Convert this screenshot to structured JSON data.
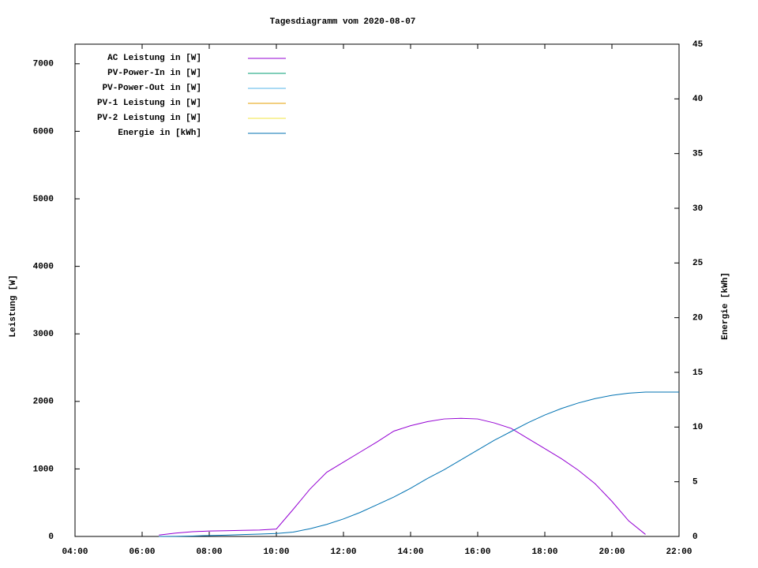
{
  "chart_data": {
    "type": "line",
    "title": "Tagesdiagramm vom 2020-08-07",
    "y_label": "Leistung [W]",
    "y2_label": "Energie [kWh]",
    "x": [
      6.5,
      7,
      7.5,
      8,
      8.5,
      9,
      9.5,
      10,
      10.5,
      11,
      11.5,
      12,
      12.5,
      13,
      13.5,
      14,
      14.5,
      15,
      15.5,
      16,
      16.5,
      17,
      17.5,
      18,
      18.5,
      19,
      19.5,
      20,
      20.5,
      21,
      21.5,
      22
    ],
    "xlim": [
      4,
      22
    ],
    "xticks": [
      {
        "value": 4,
        "label": "04:00"
      },
      {
        "value": 6,
        "label": "06:00"
      },
      {
        "value": 8,
        "label": "08:00"
      },
      {
        "value": 10,
        "label": "10:00"
      },
      {
        "value": 12,
        "label": "12:00"
      },
      {
        "value": 14,
        "label": "14:00"
      },
      {
        "value": 16,
        "label": "16:00"
      },
      {
        "value": 18,
        "label": "18:00"
      },
      {
        "value": 20,
        "label": "20:00"
      },
      {
        "value": 22,
        "label": "22:00"
      }
    ],
    "ylim": [
      0,
      7290
    ],
    "yticks": [
      0,
      1000,
      2000,
      3000,
      4000,
      5000,
      6000,
      7000
    ],
    "y2lim": [
      0,
      45
    ],
    "y2ticks": [
      0,
      5,
      10,
      15,
      20,
      25,
      30,
      35,
      40,
      45
    ],
    "series": [
      {
        "name": "AC Leistung in [W]",
        "color": "#9400d3",
        "values": [
          20,
          50,
          70,
          80,
          85,
          90,
          95,
          110,
          400,
          700,
          950,
          1100,
          1250,
          1400,
          1560,
          1640,
          1700,
          1740,
          1750,
          1740,
          1680,
          1600,
          1450,
          1300,
          1150,
          980,
          780,
          520,
          230,
          30,
          null,
          null
        ]
      },
      {
        "name": "PV-Power-In in [W]",
        "color": "#009e73",
        "values": [
          null,
          null,
          null,
          null,
          null,
          null,
          null,
          null,
          null,
          null,
          null,
          null,
          null,
          null,
          null,
          null,
          null,
          null,
          null,
          null,
          null,
          null,
          null,
          null,
          null,
          null,
          null,
          null,
          null,
          null,
          null,
          null
        ]
      },
      {
        "name": "PV-Power-Out in [W]",
        "color": "#56b4e9",
        "values": [
          null,
          null,
          null,
          null,
          null,
          null,
          null,
          null,
          null,
          null,
          null,
          null,
          null,
          null,
          null,
          null,
          null,
          null,
          null,
          null,
          null,
          null,
          null,
          null,
          null,
          null,
          null,
          null,
          null,
          null,
          null,
          null
        ]
      },
      {
        "name": "PV-1 Leistung in [W]",
        "color": "#e69f00",
        "values": [
          null,
          null,
          null,
          null,
          null,
          null,
          null,
          null,
          null,
          null,
          null,
          null,
          null,
          null,
          null,
          null,
          null,
          null,
          null,
          null,
          null,
          null,
          null,
          null,
          null,
          null,
          null,
          null,
          null,
          null,
          null,
          null
        ]
      },
      {
        "name": "PV-2 Leistung in [W]",
        "color": "#f0e442",
        "values": [
          null,
          null,
          null,
          null,
          null,
          null,
          null,
          null,
          null,
          null,
          null,
          null,
          null,
          null,
          null,
          null,
          null,
          null,
          null,
          null,
          null,
          null,
          null,
          null,
          null,
          null,
          null,
          null,
          null,
          null,
          null,
          null
        ]
      },
      {
        "name": "Energie in [kWh]",
        "color": "#0072b2",
        "axis": "y2",
        "values": [
          0,
          0.01,
          0.04,
          0.08,
          0.12,
          0.17,
          0.22,
          0.27,
          0.4,
          0.7,
          1.1,
          1.6,
          2.2,
          2.9,
          3.6,
          4.4,
          5.3,
          6.1,
          7.0,
          7.9,
          8.8,
          9.6,
          10.4,
          11.1,
          11.7,
          12.2,
          12.6,
          12.9,
          13.1,
          13.2,
          13.2,
          13.2
        ]
      }
    ]
  }
}
